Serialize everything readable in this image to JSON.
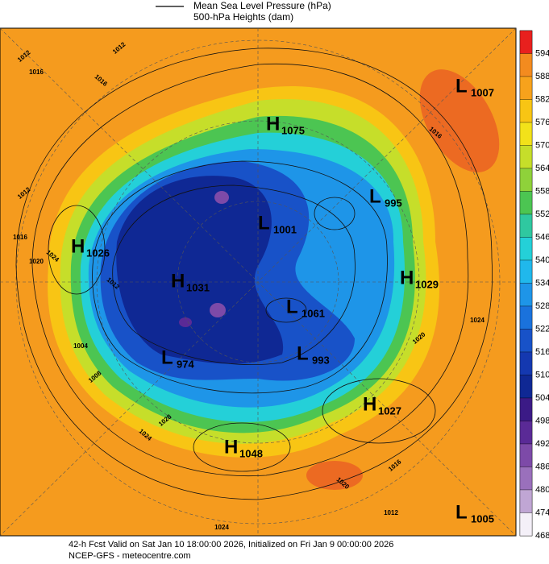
{
  "legend": {
    "pressure": "Mean Sea Level Pressure (hPa)",
    "heights": "500-hPa Heights (dam)"
  },
  "colorbar": [
    {
      "label": "594",
      "color": "#e8201e"
    },
    {
      "label": "588",
      "color": "#f38b1f"
    },
    {
      "label": "582",
      "color": "#f7a21c"
    },
    {
      "label": "576",
      "color": "#f8c514"
    },
    {
      "label": "570",
      "color": "#f2e21a"
    },
    {
      "label": "564",
      "color": "#c6de2a"
    },
    {
      "label": "558",
      "color": "#8fd23a"
    },
    {
      "label": "552",
      "color": "#4cc552"
    },
    {
      "label": "546",
      "color": "#2fc8a0"
    },
    {
      "label": "540",
      "color": "#24d0d8"
    },
    {
      "label": "534",
      "color": "#20b8ec"
    },
    {
      "label": "528",
      "color": "#1e95e8"
    },
    {
      "label": "522",
      "color": "#1a72dc"
    },
    {
      "label": "516",
      "color": "#1852c8"
    },
    {
      "label": "510",
      "color": "#1438b0"
    },
    {
      "label": "504",
      "color": "#0f2894"
    },
    {
      "label": "498",
      "color": "#3b1a86"
    },
    {
      "label": "492",
      "color": "#5a2a96"
    },
    {
      "label": "486",
      "color": "#7d4aa8"
    },
    {
      "label": "480",
      "color": "#9a70bc"
    },
    {
      "label": "474",
      "color": "#c0a6d4"
    },
    {
      "label": "468",
      "color": "#f4f0f8"
    }
  ],
  "centers": [
    {
      "letter": "L",
      "value": "1007"
    },
    {
      "letter": "H",
      "value": "1075"
    },
    {
      "letter": "L",
      "value": "995"
    },
    {
      "letter": "L",
      "value": "1001"
    },
    {
      "letter": "H",
      "value": "1026"
    },
    {
      "letter": "H",
      "value": "1031"
    },
    {
      "letter": "H",
      "value": "1029"
    },
    {
      "letter": "L",
      "value": "1061"
    },
    {
      "letter": "L",
      "value": "974"
    },
    {
      "letter": "L",
      "value": "993"
    },
    {
      "letter": "H",
      "value": "1027"
    },
    {
      "letter": "H",
      "value": "1048"
    },
    {
      "letter": "L",
      "value": "1005"
    }
  ],
  "contour_labels": [
    "1012",
    "1016",
    "1016",
    "1012",
    "1020",
    "1024",
    "1012",
    "1016",
    "1024",
    "1028",
    "1024",
    "1020",
    "1016",
    "1012",
    "1016",
    "1020",
    "1024",
    "1012",
    "1008",
    "1004"
  ],
  "footer": {
    "line1": "42-h Fcst Valid on Sat Jan 10 18:00:00 2026, Initialized on Fri Jan  9 00:00:00 2026",
    "line2": "NCEP-GFS  - meteocentre.com"
  }
}
